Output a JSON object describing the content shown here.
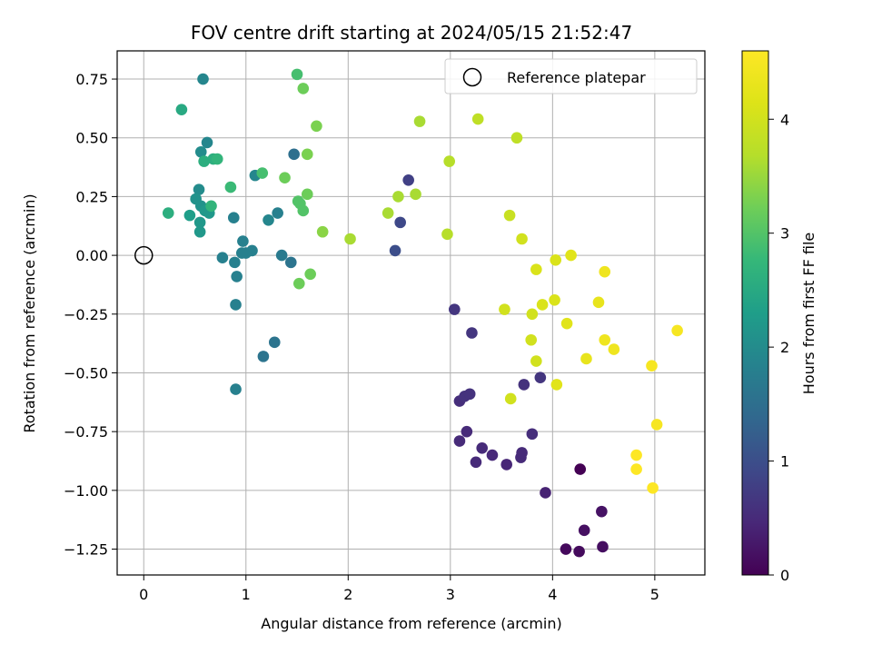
{
  "chart_data": {
    "type": "scatter",
    "title": "FOV centre drift starting at 2024/05/15 21:52:47",
    "xlabel": "Angular distance from reference (arcmin)",
    "ylabel": "Rotation from reference (arcmin)",
    "xlim": [
      -0.26,
      5.49
    ],
    "ylim": [
      -1.36,
      0.87
    ],
    "xticks": [
      0,
      1,
      2,
      3,
      4,
      5
    ],
    "xtick_labels": [
      "0",
      "1",
      "2",
      "3",
      "4",
      "5"
    ],
    "yticks": [
      0.75,
      0.5,
      0.25,
      0.0,
      -0.25,
      -0.5,
      -0.75,
      -1.0,
      -1.25
    ],
    "ytick_labels": [
      "0.75",
      "0.50",
      "0.25",
      "0.00",
      "−0.25",
      "−0.50",
      "−0.75",
      "−1.00",
      "−1.25"
    ],
    "grid": true,
    "legend": {
      "placement": "upper-right",
      "entries": [
        "Reference platepar"
      ]
    },
    "reference_point": {
      "x": 0,
      "y": 0,
      "marker": "hollow-circle"
    },
    "colorbar": {
      "label": "Hours from first FF file",
      "colormap": "viridis",
      "range": [
        0,
        4.6
      ],
      "ticks": [
        0,
        1,
        2,
        3,
        4
      ],
      "tick_labels": [
        "0",
        "1",
        "2",
        "3",
        "4"
      ]
    },
    "points": [
      {
        "x": 4.27,
        "y": -0.91,
        "c": 0.0
      },
      {
        "x": 4.13,
        "y": -1.25,
        "c": 0.1
      },
      {
        "x": 4.26,
        "y": -1.26,
        "c": 0.12
      },
      {
        "x": 4.49,
        "y": -1.24,
        "c": 0.15
      },
      {
        "x": 4.31,
        "y": -1.17,
        "c": 0.18
      },
      {
        "x": 4.48,
        "y": -1.09,
        "c": 0.2
      },
      {
        "x": 3.93,
        "y": -1.01,
        "c": 0.4
      },
      {
        "x": 3.55,
        "y": -0.89,
        "c": 0.45
      },
      {
        "x": 3.41,
        "y": -0.85,
        "c": 0.48
      },
      {
        "x": 3.25,
        "y": -0.88,
        "c": 0.5
      },
      {
        "x": 3.31,
        "y": -0.82,
        "c": 0.5
      },
      {
        "x": 3.09,
        "y": -0.79,
        "c": 0.5
      },
      {
        "x": 3.16,
        "y": -0.75,
        "c": 0.5
      },
      {
        "x": 3.69,
        "y": -0.86,
        "c": 0.5
      },
      {
        "x": 3.7,
        "y": -0.84,
        "c": 0.5
      },
      {
        "x": 3.8,
        "y": -0.76,
        "c": 0.55
      },
      {
        "x": 3.09,
        "y": -0.62,
        "c": 0.55
      },
      {
        "x": 3.14,
        "y": -0.6,
        "c": 0.6
      },
      {
        "x": 3.19,
        "y": -0.59,
        "c": 0.6
      },
      {
        "x": 3.72,
        "y": -0.55,
        "c": 0.6
      },
      {
        "x": 3.88,
        "y": -0.52,
        "c": 0.65
      },
      {
        "x": 3.04,
        "y": -0.23,
        "c": 0.65
      },
      {
        "x": 3.21,
        "y": -0.33,
        "c": 0.65
      },
      {
        "x": 2.59,
        "y": 0.32,
        "c": 0.8
      },
      {
        "x": 2.51,
        "y": 0.14,
        "c": 0.9
      },
      {
        "x": 2.46,
        "y": 0.02,
        "c": 1.0
      },
      {
        "x": 1.47,
        "y": 0.43,
        "c": 1.5
      },
      {
        "x": 1.44,
        "y": -0.03,
        "c": 1.6
      },
      {
        "x": 1.35,
        "y": 0.0,
        "c": 1.7
      },
      {
        "x": 1.28,
        "y": -0.37,
        "c": 1.6
      },
      {
        "x": 1.17,
        "y": -0.43,
        "c": 1.6
      },
      {
        "x": 1.31,
        "y": 0.18,
        "c": 1.8
      },
      {
        "x": 1.22,
        "y": 0.15,
        "c": 1.9
      },
      {
        "x": 1.06,
        "y": 0.02,
        "c": 1.8
      },
      {
        "x": 1.0,
        "y": 0.01,
        "c": 1.8
      },
      {
        "x": 0.96,
        "y": 0.01,
        "c": 1.8
      },
      {
        "x": 0.97,
        "y": 0.06,
        "c": 1.8
      },
      {
        "x": 0.89,
        "y": -0.03,
        "c": 1.8
      },
      {
        "x": 0.91,
        "y": -0.09,
        "c": 1.8
      },
      {
        "x": 0.9,
        "y": -0.21,
        "c": 1.8
      },
      {
        "x": 0.9,
        "y": -0.57,
        "c": 1.8
      },
      {
        "x": 0.88,
        "y": 0.16,
        "c": 1.8
      },
      {
        "x": 0.77,
        "y": -0.01,
        "c": 1.8
      },
      {
        "x": 1.09,
        "y": 0.34,
        "c": 1.9
      },
      {
        "x": 0.58,
        "y": 0.75,
        "c": 1.9
      },
      {
        "x": 0.62,
        "y": 0.48,
        "c": 1.9
      },
      {
        "x": 0.56,
        "y": 0.44,
        "c": 2.0
      },
      {
        "x": 0.54,
        "y": 0.28,
        "c": 2.0
      },
      {
        "x": 0.51,
        "y": 0.24,
        "c": 2.1
      },
      {
        "x": 0.56,
        "y": 0.21,
        "c": 2.1
      },
      {
        "x": 0.6,
        "y": 0.19,
        "c": 2.2
      },
      {
        "x": 0.64,
        "y": 0.18,
        "c": 2.2
      },
      {
        "x": 0.55,
        "y": 0.14,
        "c": 2.2
      },
      {
        "x": 0.55,
        "y": 0.1,
        "c": 2.2
      },
      {
        "x": 0.45,
        "y": 0.17,
        "c": 2.3
      },
      {
        "x": 0.37,
        "y": 0.62,
        "c": 2.5
      },
      {
        "x": 0.24,
        "y": 0.18,
        "c": 2.6
      },
      {
        "x": 0.59,
        "y": 0.4,
        "c": 2.6
      },
      {
        "x": 0.68,
        "y": 0.41,
        "c": 2.6
      },
      {
        "x": 0.72,
        "y": 0.41,
        "c": 2.7
      },
      {
        "x": 0.66,
        "y": 0.21,
        "c": 2.7
      },
      {
        "x": 0.85,
        "y": 0.29,
        "c": 2.8
      },
      {
        "x": 1.16,
        "y": 0.35,
        "c": 2.9
      },
      {
        "x": 1.5,
        "y": 0.77,
        "c": 2.9
      },
      {
        "x": 1.51,
        "y": 0.23,
        "c": 3.0
      },
      {
        "x": 1.53,
        "y": 0.22,
        "c": 3.0
      },
      {
        "x": 1.56,
        "y": 0.19,
        "c": 3.0
      },
      {
        "x": 1.38,
        "y": 0.33,
        "c": 3.2
      },
      {
        "x": 1.56,
        "y": 0.71,
        "c": 3.2
      },
      {
        "x": 1.6,
        "y": 0.26,
        "c": 3.2
      },
      {
        "x": 1.52,
        "y": -0.12,
        "c": 3.2
      },
      {
        "x": 1.63,
        "y": -0.08,
        "c": 3.2
      },
      {
        "x": 1.69,
        "y": 0.55,
        "c": 3.3
      },
      {
        "x": 1.6,
        "y": 0.43,
        "c": 3.3
      },
      {
        "x": 1.75,
        "y": 0.1,
        "c": 3.4
      },
      {
        "x": 2.02,
        "y": 0.07,
        "c": 3.6
      },
      {
        "x": 2.39,
        "y": 0.18,
        "c": 3.6
      },
      {
        "x": 2.49,
        "y": 0.25,
        "c": 3.6
      },
      {
        "x": 2.66,
        "y": 0.26,
        "c": 3.6
      },
      {
        "x": 2.7,
        "y": 0.57,
        "c": 3.6
      },
      {
        "x": 2.97,
        "y": 0.09,
        "c": 3.7
      },
      {
        "x": 2.99,
        "y": 0.4,
        "c": 3.7
      },
      {
        "x": 3.27,
        "y": 0.58,
        "c": 3.8
      },
      {
        "x": 3.65,
        "y": 0.5,
        "c": 3.8
      },
      {
        "x": 3.58,
        "y": 0.17,
        "c": 3.9
      },
      {
        "x": 3.7,
        "y": 0.07,
        "c": 4.0
      },
      {
        "x": 3.53,
        "y": -0.23,
        "c": 4.0
      },
      {
        "x": 3.59,
        "y": -0.61,
        "c": 4.0
      },
      {
        "x": 3.8,
        "y": -0.25,
        "c": 4.0
      },
      {
        "x": 3.79,
        "y": -0.36,
        "c": 4.0
      },
      {
        "x": 3.84,
        "y": -0.45,
        "c": 4.0
      },
      {
        "x": 3.84,
        "y": -0.06,
        "c": 4.1
      },
      {
        "x": 3.9,
        "y": -0.21,
        "c": 4.1
      },
      {
        "x": 4.02,
        "y": -0.19,
        "c": 4.1
      },
      {
        "x": 4.03,
        "y": -0.02,
        "c": 4.1
      },
      {
        "x": 4.14,
        "y": -0.29,
        "c": 4.2
      },
      {
        "x": 4.04,
        "y": -0.55,
        "c": 4.2
      },
      {
        "x": 4.18,
        "y": 0.0,
        "c": 4.2
      },
      {
        "x": 4.33,
        "y": -0.44,
        "c": 4.3
      },
      {
        "x": 4.45,
        "y": -0.2,
        "c": 4.3
      },
      {
        "x": 4.51,
        "y": -0.07,
        "c": 4.4
      },
      {
        "x": 4.51,
        "y": -0.36,
        "c": 4.4
      },
      {
        "x": 4.6,
        "y": -0.4,
        "c": 4.4
      },
      {
        "x": 4.97,
        "y": -0.47,
        "c": 4.5
      },
      {
        "x": 5.22,
        "y": -0.32,
        "c": 4.5
      },
      {
        "x": 5.02,
        "y": -0.72,
        "c": 4.5
      },
      {
        "x": 4.82,
        "y": -0.85,
        "c": 4.6
      },
      {
        "x": 4.82,
        "y": -0.91,
        "c": 4.6
      },
      {
        "x": 4.98,
        "y": -0.99,
        "c": 4.6
      }
    ]
  }
}
